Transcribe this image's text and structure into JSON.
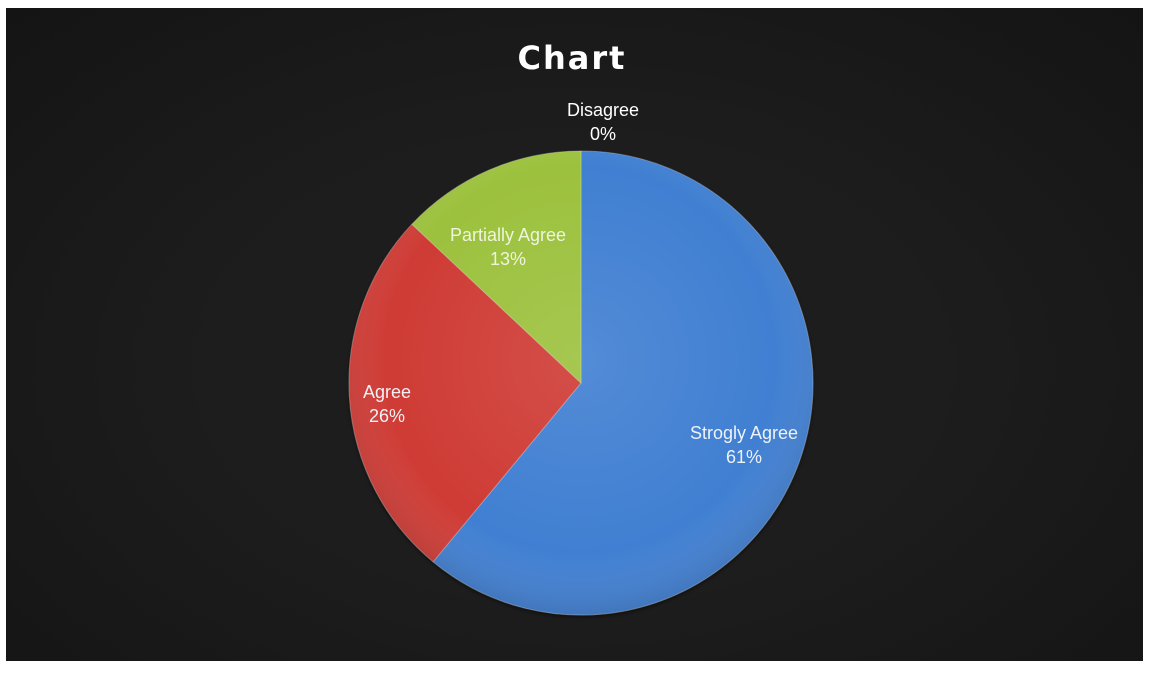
{
  "chart_data": {
    "type": "pie",
    "title": "Chart",
    "categories": [
      "Strogly Agree",
      "Agree",
      "Partially Agree",
      "Disagree"
    ],
    "values": [
      61,
      26,
      13,
      0
    ],
    "value_labels": [
      "61%",
      "26%",
      "13%",
      "0%"
    ],
    "colors": [
      "#3f7fd2",
      "#cf3b36",
      "#9cc13e",
      "#7f5fa8"
    ],
    "label_colors": [
      "#eef2f8",
      "#eef2f8",
      "#eef5dc",
      "#ffffff"
    ],
    "legend": "none",
    "start_angle_deg": 0,
    "direction": "clockwise"
  }
}
